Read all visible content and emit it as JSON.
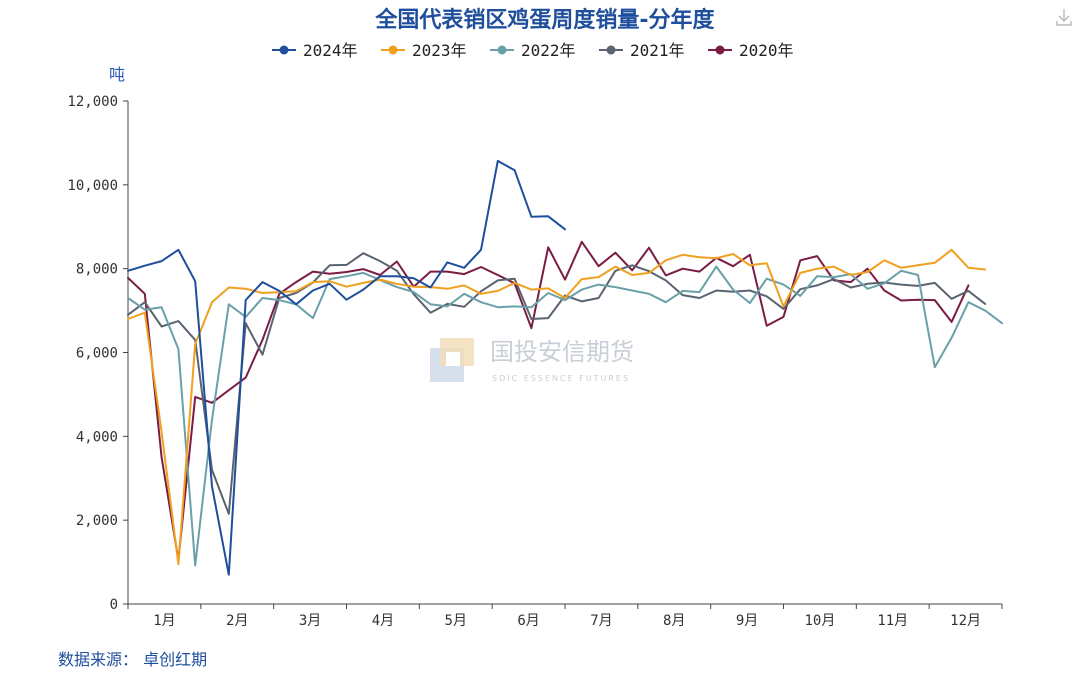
{
  "chart_data": {
    "type": "line",
    "title": "全国代表销区鸡蛋周度销量-分年度",
    "unit_label": "吨",
    "ylim": [
      0,
      12000
    ],
    "y_ticks": [
      "0",
      "2,000",
      "4,000",
      "6,000",
      "8,000",
      "10,000",
      "12,000"
    ],
    "y_tick_values": [
      0,
      2000,
      4000,
      6000,
      8000,
      10000,
      12000
    ],
    "x_ticks": [
      "1月",
      "2月",
      "3月",
      "4月",
      "5月",
      "6月",
      "7月",
      "8月",
      "9月",
      "10月",
      "11月",
      "12月"
    ],
    "x_unit": "week",
    "x_range": [
      1,
      53
    ],
    "grid": false,
    "legend_position": "top",
    "source": "数据来源： 卓创红期",
    "watermark": {
      "cn": "国投安信期货",
      "en": "SDIC ESSENCE FUTURES"
    },
    "series": [
      {
        "name": "2024年",
        "color": "#1f4e9c",
        "values": [
          7950,
          8070,
          8180,
          8450,
          7700,
          2800,
          700,
          7250,
          7680,
          7470,
          7150,
          7480,
          7640,
          7260,
          7500,
          7820,
          7820,
          7770,
          7550,
          8150,
          8020,
          8450,
          10570,
          10350,
          9240,
          9250,
          8940
        ]
      },
      {
        "name": "2023年",
        "color": "#f0a020",
        "values": [
          6800,
          6950,
          4100,
          950,
          6200,
          7200,
          7550,
          7520,
          7420,
          7440,
          7460,
          7680,
          7700,
          7570,
          7660,
          7740,
          7640,
          7570,
          7560,
          7520,
          7600,
          7400,
          7470,
          7660,
          7500,
          7530,
          7300,
          7750,
          7800,
          8050,
          7850,
          7900,
          8200,
          8330,
          8270,
          8250,
          8350,
          8080,
          8130,
          7100,
          7900,
          8000,
          8050,
          7850,
          7920,
          8200,
          8020,
          8080,
          8140,
          8450,
          8020,
          7980
        ]
      },
      {
        "name": "2022年",
        "color": "#6aa0a8",
        "values": [
          7300,
          7020,
          7080,
          6080,
          920,
          4400,
          7150,
          6850,
          7300,
          7250,
          7150,
          6820,
          7750,
          7820,
          7900,
          7730,
          7560,
          7440,
          7150,
          7100,
          7400,
          7200,
          7080,
          7100,
          7080,
          7420,
          7250,
          7500,
          7620,
          7560,
          7480,
          7400,
          7200,
          7470,
          7440,
          8050,
          7500,
          7180,
          7760,
          7620,
          7350,
          7820,
          7800,
          7870,
          7520,
          7650,
          7950,
          7850,
          5650,
          6350,
          7200,
          7000,
          6700
        ]
      },
      {
        "name": "2021年",
        "color": "#5a6470",
        "values": [
          6900,
          7200,
          6620,
          6750,
          6300,
          3200,
          2150,
          6700,
          5950,
          7300,
          7420,
          7670,
          8080,
          8090,
          8370,
          8180,
          7950,
          7390,
          6950,
          7160,
          7090,
          7460,
          7720,
          7760,
          6800,
          6820,
          7360,
          7220,
          7300,
          7950,
          8080,
          7940,
          7720,
          7370,
          7300,
          7480,
          7450,
          7480,
          7340,
          7040,
          7510,
          7600,
          7750,
          7550,
          7640,
          7670,
          7620,
          7590,
          7660,
          7280,
          7470,
          7160
        ]
      },
      {
        "name": "2020年",
        "color": "#7a1c44",
        "values": [
          7780,
          7400,
          3500,
          1050,
          4940,
          4800,
          5100,
          5400,
          6300,
          7400,
          7680,
          7930,
          7880,
          7920,
          7990,
          7850,
          8170,
          7570,
          7930,
          7930,
          7870,
          8040,
          7850,
          7650,
          6580,
          8510,
          7740,
          8640,
          8060,
          8380,
          7960,
          8500,
          7840,
          8000,
          7930,
          8260,
          8060,
          8330,
          6640,
          6850,
          8200,
          8300,
          7720,
          7680,
          8000,
          7480,
          7240,
          7260,
          7250,
          6730,
          7600
        ]
      }
    ]
  }
}
